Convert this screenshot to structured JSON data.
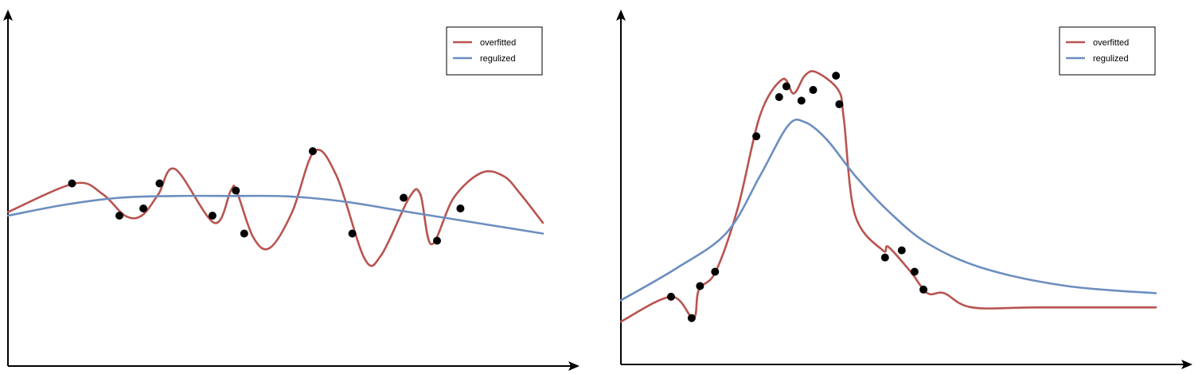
{
  "colors": {
    "overfitted": "#b85450",
    "regularized": "#6c8ebf",
    "points": "#000000",
    "axis": "#000000"
  },
  "chart_data": [
    {
      "type": "line",
      "title": "",
      "xlabel": "",
      "ylabel": "",
      "xlim": [
        0,
        100
      ],
      "ylim": [
        0,
        100
      ],
      "grid": false,
      "legend": {
        "position": "top-right",
        "entries": [
          "overfitted",
          "regulized"
        ]
      },
      "series": [
        {
          "name": "overfitted",
          "x": [
            0,
            12,
            17,
            21,
            24,
            27,
            30,
            37,
            40,
            41,
            44,
            47,
            51,
            55,
            59,
            64,
            67,
            72,
            74,
            76,
            80,
            85,
            89,
            92,
            96
          ],
          "y": [
            43,
            51,
            48,
            42,
            42,
            48,
            55,
            40,
            49,
            49,
            36,
            33,
            43,
            60,
            53,
            30,
            31,
            47,
            48,
            34,
            47,
            54,
            53,
            48,
            40
          ]
        },
        {
          "name": "regulized",
          "x": [
            0,
            10,
            20,
            30,
            40,
            50,
            60,
            70,
            80,
            96
          ],
          "y": [
            42,
            45,
            47,
            47.5,
            47.5,
            47.4,
            46,
            43.5,
            41,
            37
          ]
        }
      ],
      "points": {
        "x": [
          11.5,
          20,
          24.3,
          27.2,
          36.7,
          40.9,
          42.4,
          54.7,
          61.8,
          71,
          77,
          81.2
        ],
        "y": [
          51,
          42,
          44,
          51,
          42,
          49,
          37,
          60,
          37,
          47,
          35,
          44
        ]
      }
    },
    {
      "type": "line",
      "title": "",
      "xlabel": "",
      "ylabel": "",
      "xlim": [
        0,
        100
      ],
      "ylim": [
        0,
        100
      ],
      "grid": false,
      "legend": {
        "position": "top-right",
        "entries": [
          "overfitted",
          "regulized"
        ]
      },
      "series": [
        {
          "name": "overfitted",
          "x": [
            0,
            9,
            13,
            14,
            17,
            21,
            25,
            29,
            31,
            33,
            35,
            39,
            40,
            42,
            47,
            48,
            52,
            55,
            58,
            63,
            75,
            96
          ],
          "y": [
            12,
            19,
            13,
            21,
            26,
            44,
            70,
            80,
            76,
            81,
            82,
            77,
            69,
            42,
            32,
            33,
            26,
            20,
            20,
            16,
            16,
            16
          ]
        },
        {
          "name": "regulized",
          "x": [
            0,
            10,
            19,
            25,
            30,
            33,
            37,
            42,
            48,
            55,
            65,
            80,
            96
          ],
          "y": [
            18,
            27,
            37,
            53,
            67,
            68,
            63,
            53,
            43,
            34,
            27,
            22,
            20
          ]
        }
      ],
      "points": {
        "x": [
          9,
          12.7,
          14.2,
          16.9,
          24.3,
          28.4,
          29.7,
          32.4,
          34.5,
          38.6,
          39.2,
          47.4,
          50.4,
          52.7,
          54.3
        ],
        "y": [
          19,
          13,
          22,
          26,
          64,
          75,
          78,
          74,
          77,
          81,
          73,
          30,
          32,
          26,
          21
        ]
      }
    }
  ]
}
